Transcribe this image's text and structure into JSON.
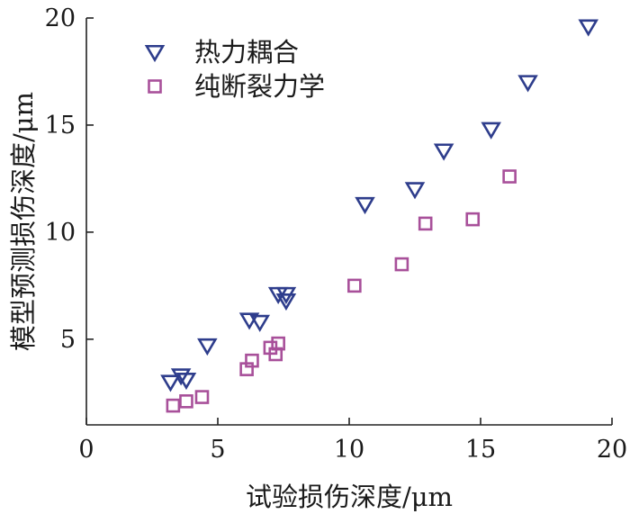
{
  "chart_data": {
    "type": "scatter",
    "title": "",
    "xlabel": "试验损伤深度/μm",
    "ylabel": "模型预测损伤深度/μm",
    "xlim": [
      0,
      20
    ],
    "ylim": [
      1,
      20
    ],
    "xticks": [
      0,
      5,
      10,
      15,
      20
    ],
    "yticks": [
      5,
      10,
      15,
      20
    ],
    "grid": false,
    "legend_position": "top-left",
    "series": [
      {
        "name": "热力耦合",
        "marker": "triangle-down",
        "color": "#2e3d8c",
        "points": [
          [
            3.2,
            3.0
          ],
          [
            3.6,
            3.3
          ],
          [
            3.8,
            3.1
          ],
          [
            4.6,
            4.7
          ],
          [
            6.2,
            5.9
          ],
          [
            6.6,
            5.8
          ],
          [
            7.3,
            7.1
          ],
          [
            7.6,
            6.8
          ],
          [
            7.6,
            7.1
          ],
          [
            10.6,
            11.3
          ],
          [
            12.5,
            12.0
          ],
          [
            13.6,
            13.8
          ],
          [
            15.4,
            14.8
          ],
          [
            16.8,
            17.0
          ],
          [
            19.1,
            19.6
          ]
        ]
      },
      {
        "name": "纯断裂力学",
        "marker": "square",
        "color": "#a8509a",
        "points": [
          [
            3.3,
            1.9
          ],
          [
            3.8,
            2.1
          ],
          [
            4.4,
            2.3
          ],
          [
            6.1,
            3.6
          ],
          [
            6.3,
            4.0
          ],
          [
            7.0,
            4.6
          ],
          [
            7.2,
            4.3
          ],
          [
            7.3,
            4.8
          ],
          [
            10.2,
            7.5
          ],
          [
            12.0,
            8.5
          ],
          [
            12.9,
            10.4
          ],
          [
            14.7,
            10.6
          ],
          [
            16.1,
            12.6
          ]
        ]
      }
    ]
  }
}
